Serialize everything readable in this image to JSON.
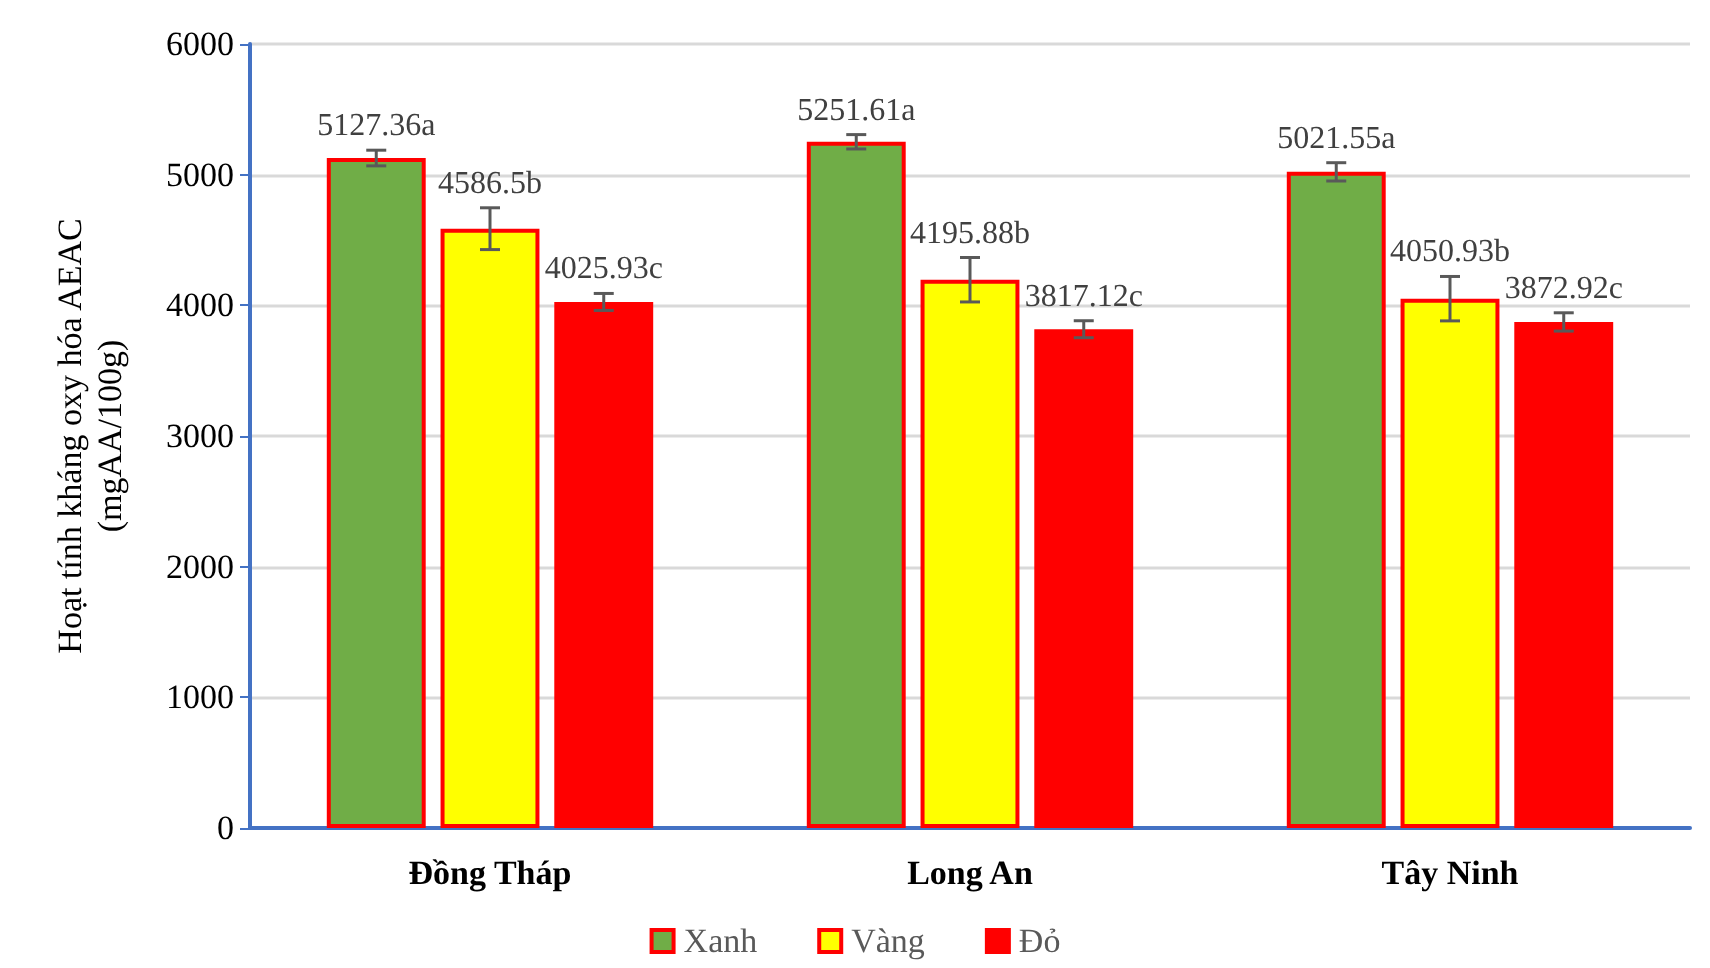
{
  "chart_data": {
    "type": "bar",
    "ylabel": "Hoạt tính kháng oxy hóa AEAC\n(mgAA/100g)",
    "categories": [
      "Đồng Tháp",
      "Long An",
      "Tây Ninh"
    ],
    "series": [
      {
        "name": "Xanh",
        "color": "#70ad47",
        "values": [
          5127.36,
          5251.61,
          5021.55
        ],
        "errors": [
          60,
          55,
          70
        ],
        "value_labels": [
          "5127.36a",
          "5251.61a",
          "5021.55a"
        ]
      },
      {
        "name": "Vàng",
        "color": "#ffff00",
        "values": [
          4586.5,
          4195.88,
          4050.93
        ],
        "errors": [
          160,
          170,
          170
        ],
        "value_labels": [
          "4586.5b",
          "4195.88b",
          "4050.93b"
        ]
      },
      {
        "name": "Đỏ",
        "color": "#ff0000",
        "values": [
          4025.93,
          3817.12,
          3872.92
        ],
        "errors": [
          65,
          65,
          70
        ],
        "value_labels": [
          "4025.93c",
          "3817.12c",
          "3872.92c"
        ]
      }
    ],
    "ylim": [
      0,
      6000
    ],
    "yticks": [
      0,
      1000,
      2000,
      3000,
      4000,
      5000,
      6000
    ],
    "grid": "y",
    "legend": "bottom"
  }
}
